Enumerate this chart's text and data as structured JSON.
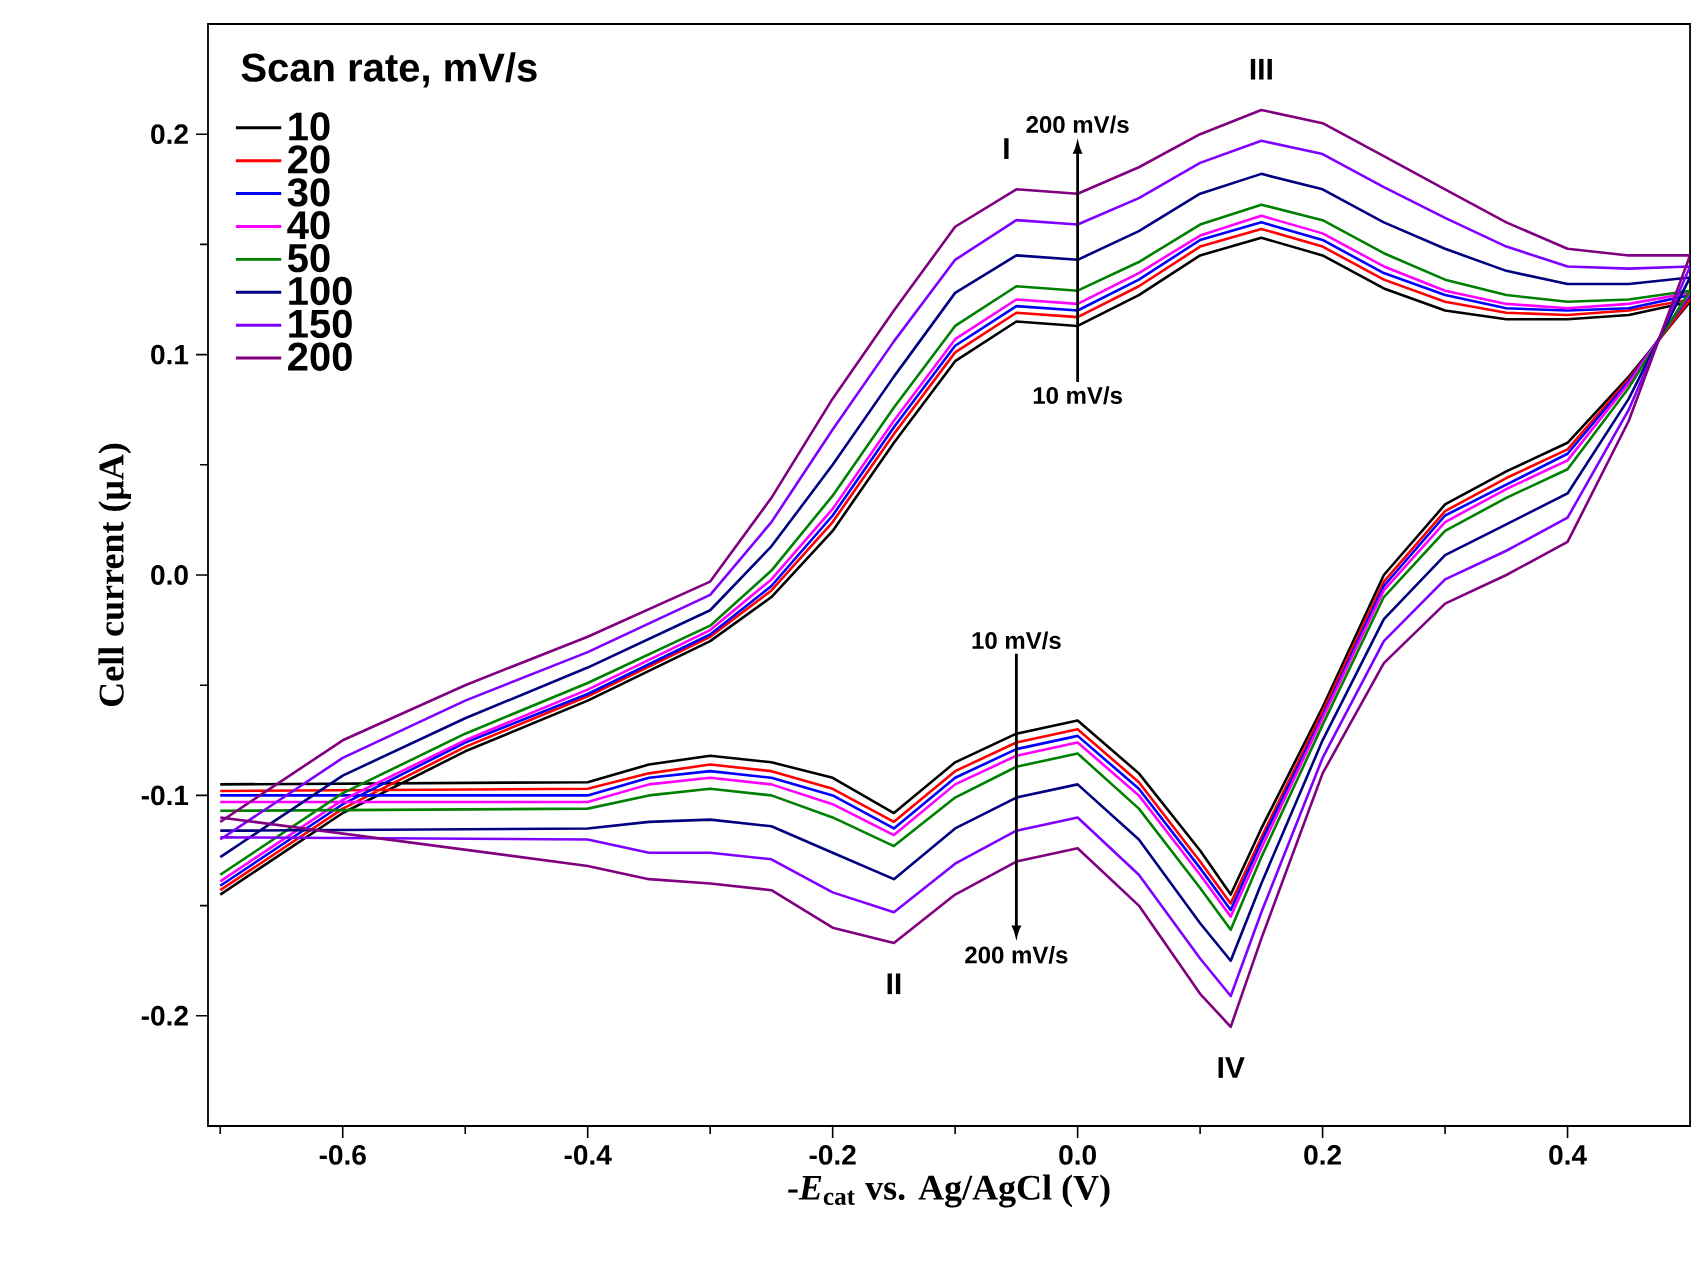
{
  "chart_data": {
    "type": "line",
    "xlabel": "-*E*$_{cat}$ vs. Ag/AgCl (V)",
    "ylabel": "Cell current (μA)",
    "legend_title": "Scan rate, mV/s",
    "legend": "top left",
    "x": [
      -0.7,
      -0.6,
      -0.5,
      -0.4,
      -0.3,
      -0.25,
      -0.2,
      -0.15,
      -0.1,
      -0.05,
      0,
      0.05,
      0.1,
      0.15,
      0.2,
      0.25,
      0.3,
      0.35,
      0.4,
      0.45,
      0.5,
      0.45,
      0.4,
      0.35,
      0.3,
      0.25,
      0.2,
      0.15,
      0.125,
      0.1,
      0.05,
      0,
      -0.05,
      -0.1,
      -0.15,
      -0.2,
      -0.25,
      -0.3,
      -0.35,
      -0.4,
      -0.7
    ],
    "series": [
      {
        "name": "10",
        "color": "#000000",
        "values": [
          -0.145,
          -0.108,
          -0.08,
          -0.057,
          -0.03,
          -0.01,
          0.02,
          0.06,
          0.097,
          0.115,
          0.113,
          0.127,
          0.145,
          0.153,
          0.145,
          0.13,
          0.12,
          0.116,
          0.116,
          0.118,
          0.124,
          0.09,
          0.06,
          0.047,
          0.032,
          0.0,
          -0.06,
          -0.115,
          -0.145,
          -0.125,
          -0.09,
          -0.066,
          -0.072,
          -0.085,
          -0.108,
          -0.092,
          -0.085,
          -0.082,
          -0.086,
          -0.094,
          -0.095
        ]
      },
      {
        "name": "20",
        "color": "#ff0000",
        "values": [
          -0.143,
          -0.106,
          -0.078,
          -0.055,
          -0.028,
          -0.007,
          0.024,
          0.064,
          0.101,
          0.119,
          0.117,
          0.131,
          0.149,
          0.157,
          0.149,
          0.134,
          0.124,
          0.119,
          0.118,
          0.12,
          0.125,
          0.089,
          0.057,
          0.044,
          0.029,
          -0.003,
          -0.062,
          -0.119,
          -0.149,
          -0.13,
          -0.094,
          -0.07,
          -0.076,
          -0.089,
          -0.112,
          -0.097,
          -0.089,
          -0.086,
          -0.09,
          -0.097,
          -0.098
        ]
      },
      {
        "name": "30",
        "color": "#0000ff",
        "values": [
          -0.141,
          -0.104,
          -0.076,
          -0.054,
          -0.027,
          -0.005,
          0.027,
          0.067,
          0.104,
          0.122,
          0.12,
          0.134,
          0.152,
          0.16,
          0.152,
          0.137,
          0.127,
          0.121,
          0.12,
          0.121,
          0.127,
          0.088,
          0.055,
          0.041,
          0.027,
          -0.005,
          -0.064,
          -0.121,
          -0.152,
          -0.133,
          -0.097,
          -0.073,
          -0.079,
          -0.092,
          -0.115,
          -0.1,
          -0.092,
          -0.089,
          -0.092,
          -0.1,
          -0.1
        ]
      },
      {
        "name": "40",
        "color": "#ff00ff",
        "values": [
          -0.139,
          -0.102,
          -0.075,
          -0.052,
          -0.025,
          -0.002,
          0.03,
          0.07,
          0.107,
          0.125,
          0.123,
          0.137,
          0.154,
          0.163,
          0.155,
          0.14,
          0.129,
          0.123,
          0.121,
          0.123,
          0.128,
          0.087,
          0.052,
          0.039,
          0.024,
          -0.007,
          -0.065,
          -0.124,
          -0.155,
          -0.136,
          -0.1,
          -0.076,
          -0.082,
          -0.095,
          -0.118,
          -0.104,
          -0.095,
          -0.092,
          -0.095,
          -0.103,
          -0.103
        ]
      },
      {
        "name": "50",
        "color": "#008000",
        "values": [
          -0.136,
          -0.099,
          -0.072,
          -0.049,
          -0.023,
          0.002,
          0.036,
          0.076,
          0.113,
          0.131,
          0.129,
          0.142,
          0.159,
          0.168,
          0.161,
          0.146,
          0.134,
          0.127,
          0.124,
          0.125,
          0.129,
          0.085,
          0.048,
          0.035,
          0.02,
          -0.01,
          -0.068,
          -0.128,
          -0.161,
          -0.142,
          -0.106,
          -0.081,
          -0.087,
          -0.101,
          -0.123,
          -0.11,
          -0.1,
          -0.097,
          -0.1,
          -0.106,
          -0.107
        ]
      },
      {
        "name": "100",
        "color": "#000080",
        "values": [
          -0.128,
          -0.091,
          -0.065,
          -0.042,
          -0.016,
          0.013,
          0.05,
          0.09,
          0.128,
          0.145,
          0.143,
          0.156,
          0.173,
          0.182,
          0.175,
          0.16,
          0.148,
          0.138,
          0.132,
          0.132,
          0.135,
          0.08,
          0.037,
          0.023,
          0.009,
          -0.02,
          -0.075,
          -0.14,
          -0.175,
          -0.158,
          -0.12,
          -0.095,
          -0.101,
          -0.115,
          -0.138,
          -0.126,
          -0.114,
          -0.111,
          -0.112,
          -0.115,
          -0.116
        ]
      },
      {
        "name": "150",
        "color": "#8000ff",
        "values": [
          -0.12,
          -0.083,
          -0.057,
          -0.035,
          -0.009,
          0.024,
          0.066,
          0.106,
          0.143,
          0.161,
          0.159,
          0.171,
          0.187,
          0.197,
          0.191,
          0.176,
          0.162,
          0.149,
          0.14,
          0.139,
          0.14,
          0.075,
          0.026,
          0.011,
          -0.002,
          -0.03,
          -0.083,
          -0.153,
          -0.191,
          -0.174,
          -0.136,
          -0.11,
          -0.116,
          -0.131,
          -0.153,
          -0.144,
          -0.129,
          -0.126,
          -0.126,
          -0.12,
          -0.119
        ]
      },
      {
        "name": "200",
        "color": "#800080",
        "values": [
          -0.112,
          -0.075,
          -0.05,
          -0.028,
          -0.003,
          0.035,
          0.08,
          0.12,
          0.158,
          0.175,
          0.173,
          0.185,
          0.2,
          0.211,
          0.205,
          0.19,
          0.175,
          0.16,
          0.148,
          0.145,
          0.145,
          0.07,
          0.015,
          0.0,
          -0.013,
          -0.04,
          -0.09,
          -0.165,
          -0.205,
          -0.19,
          -0.15,
          -0.124,
          -0.13,
          -0.145,
          -0.167,
          -0.16,
          -0.143,
          -0.14,
          -0.138,
          -0.132,
          -0.11
        ]
      }
    ],
    "xlim": [
      -0.71,
      0.5
    ],
    "ylim": [
      -0.25,
      0.25
    ],
    "xticks": [
      {
        "value": -0.7,
        "label": null
      },
      {
        "value": -0.6,
        "label": "-0.6"
      },
      {
        "value": -0.5,
        "label": null
      },
      {
        "value": -0.4,
        "label": "-0.4"
      },
      {
        "value": -0.3,
        "label": null
      },
      {
        "value": -0.2,
        "label": "-0.2"
      },
      {
        "value": -0.1,
        "label": null
      },
      {
        "value": 0.0,
        "label": "0.0"
      },
      {
        "value": 0.1,
        "label": null
      },
      {
        "value": 0.2,
        "label": "0.2"
      },
      {
        "value": 0.3,
        "label": null
      },
      {
        "value": 0.4,
        "label": "0.4"
      }
    ],
    "yticks": [
      {
        "value": -0.2,
        "label": "-0.2"
      },
      {
        "value": -0.15,
        "label": null
      },
      {
        "value": -0.1,
        "label": "-0.1"
      },
      {
        "value": -0.05,
        "label": null
      },
      {
        "value": 0.0,
        "label": "0.0"
      },
      {
        "value": 0.05,
        "label": null
      },
      {
        "value": 0.1,
        "label": "0.1"
      },
      {
        "value": 0.15,
        "label": null
      },
      {
        "value": 0.2,
        "label": "0.2"
      }
    ],
    "annotations": [
      "I",
      "II",
      "III",
      "IV",
      "200 mV/s",
      "10 mV/s",
      "10 mV/s",
      "200 mV/s"
    ]
  }
}
